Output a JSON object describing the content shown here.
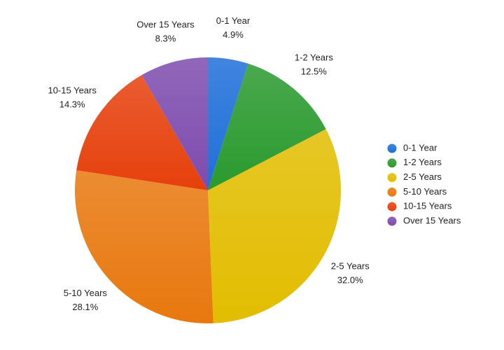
{
  "chart_data": {
    "type": "pie",
    "categories": [
      "0-1 Year",
      "1-2 Years",
      "2-5 Years",
      "5-10 Years",
      "10-15 Years",
      "Over 15 Years"
    ],
    "values": [
      4.9,
      12.5,
      32.0,
      28.1,
      14.3,
      8.3
    ],
    "value_labels": [
      "4.9%",
      "12.5%",
      "32.0%",
      "28.1%",
      "14.3%",
      "8.3%"
    ],
    "colors": [
      "#1f6fd8",
      "#2a9a2e",
      "#e2bd00",
      "#e8780e",
      "#e6400c",
      "#7d4cae"
    ],
    "legend": "right"
  }
}
